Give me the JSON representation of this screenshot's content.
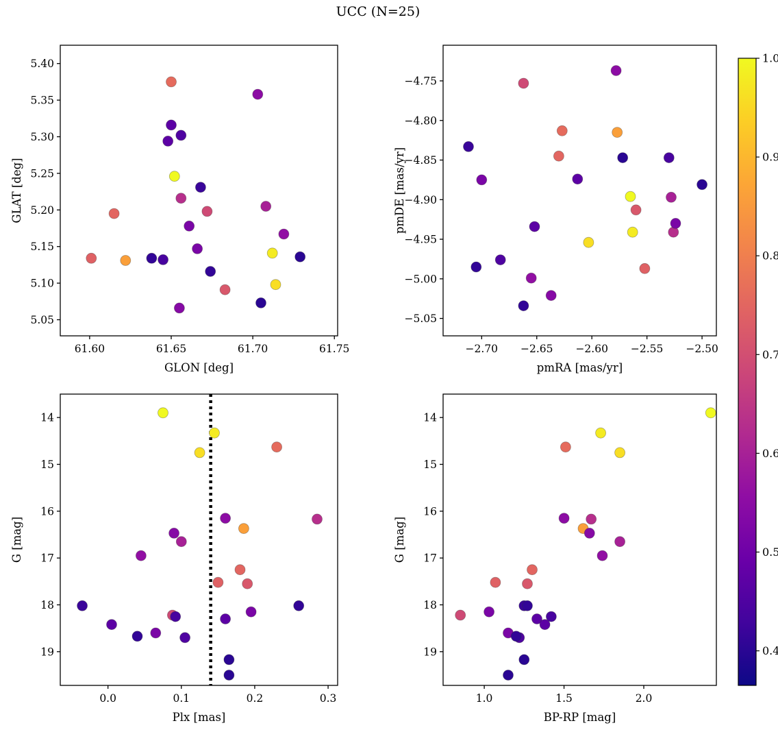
{
  "chart_data": {
    "type": "scatter",
    "figure_title": "UCC (N=25)",
    "legend": "none",
    "grid": false,
    "colorbar": {
      "colormap": "plasma",
      "vmin": 0.365,
      "vmax": 1.0,
      "ticks": [
        0.4,
        0.5,
        0.6,
        0.7,
        0.8,
        0.9,
        1.0
      ],
      "decimals": 1
    },
    "colors": {
      "plasma_stops": [
        "#0d0887",
        "#41049d",
        "#6a00a8",
        "#8f0da4",
        "#b12a90",
        "#cc4778",
        "#e16462",
        "#f2844b",
        "#fca636",
        "#fcce25",
        "#f0f921"
      ],
      "marker_edge": "#333333",
      "axis_color": "#000000",
      "vline_color": "#000000"
    },
    "marker": {
      "radius_px": 7.5
    },
    "panels": [
      {
        "name": "glon-glat",
        "xlabel": "GLON [deg]",
        "ylabel": "GLAT [deg]",
        "xkey": "glon",
        "ykey": "glat",
        "xlim": [
          61.582,
          61.752
        ],
        "ylim": [
          5.028,
          5.425
        ],
        "xticks": [
          61.6,
          61.65,
          61.7,
          61.75
        ],
        "yticks": [
          5.05,
          5.1,
          5.15,
          5.2,
          5.25,
          5.3,
          5.35,
          5.4
        ],
        "xdec": 2,
        "ydec": 2,
        "invert_y": false
      },
      {
        "name": "pmra-pmde",
        "xlabel": "pmRA [mas/yr]",
        "ylabel": "pmDE [mas/yr]",
        "xkey": "pmra",
        "ykey": "pmde",
        "xlim": [
          -2.735,
          -2.487
        ],
        "ylim": [
          -5.072,
          -4.705
        ],
        "xticks": [
          -2.7,
          -2.65,
          -2.6,
          -2.55,
          -2.5
        ],
        "yticks": [
          -5.05,
          -5.0,
          -4.95,
          -4.9,
          -4.85,
          -4.8,
          -4.75
        ],
        "xdec": 2,
        "ydec": 2,
        "invert_y": false
      },
      {
        "name": "plx-g",
        "xlabel": "Plx [mas]",
        "ylabel": "G [mag]",
        "xkey": "plx",
        "ykey": "g",
        "xlim": [
          -0.065,
          0.313
        ],
        "ylim": [
          13.5,
          19.72
        ],
        "xticks": [
          0.0,
          0.1,
          0.2,
          0.3
        ],
        "yticks": [
          14,
          15,
          16,
          17,
          18,
          19
        ],
        "xdec": 1,
        "ydec": 0,
        "invert_y": true,
        "vline": {
          "x": 0.14,
          "style": "dotted"
        }
      },
      {
        "name": "bprp-g",
        "xlabel": "BP-RP [mag]",
        "ylabel": "G [mag]",
        "xkey": "bprp",
        "ykey": "g",
        "xlim": [
          0.742,
          2.455
        ],
        "ylim": [
          13.5,
          19.72
        ],
        "xticks": [
          1.0,
          1.5,
          2.0
        ],
        "yticks": [
          14,
          15,
          16,
          17,
          18,
          19
        ],
        "xdec": 1,
        "ydec": 0,
        "invert_y": true
      }
    ],
    "stars": [
      {
        "glon": 61.652,
        "glat": 5.246,
        "pmra": -2.565,
        "pmde": -4.896,
        "plx": 0.075,
        "g": 13.9,
        "bprp": 2.42,
        "p": 1.0
      },
      {
        "glon": 61.712,
        "glat": 5.141,
        "pmra": -2.563,
        "pmde": -4.941,
        "plx": 0.145,
        "g": 14.33,
        "bprp": 1.73,
        "p": 0.98
      },
      {
        "glon": 61.714,
        "glat": 5.098,
        "pmra": -2.603,
        "pmde": -4.954,
        "plx": 0.125,
        "g": 14.75,
        "bprp": 1.85,
        "p": 0.96
      },
      {
        "glon": 61.65,
        "glat": 5.375,
        "pmra": -2.627,
        "pmde": -4.813,
        "plx": 0.23,
        "g": 14.63,
        "bprp": 1.51,
        "p": 0.76
      },
      {
        "glon": 61.622,
        "glat": 5.131,
        "pmra": -2.577,
        "pmde": -4.815,
        "plx": 0.185,
        "g": 16.37,
        "bprp": 1.62,
        "p": 0.86
      },
      {
        "glon": 61.615,
        "glat": 5.195,
        "pmra": -2.63,
        "pmde": -4.845,
        "plx": 0.18,
        "g": 17.25,
        "bprp": 1.3,
        "p": 0.75
      },
      {
        "glon": 61.601,
        "glat": 5.134,
        "pmra": -2.552,
        "pmde": -4.987,
        "plx": 0.15,
        "g": 17.52,
        "bprp": 1.07,
        "p": 0.74
      },
      {
        "glon": 61.683,
        "glat": 5.091,
        "pmra": -2.56,
        "pmde": -4.913,
        "plx": 0.19,
        "g": 17.55,
        "bprp": 1.27,
        "p": 0.72
      },
      {
        "glon": 61.672,
        "glat": 5.198,
        "pmra": -2.662,
        "pmde": -4.753,
        "plx": 0.088,
        "g": 18.22,
        "bprp": 0.85,
        "p": 0.69
      },
      {
        "glon": 61.656,
        "glat": 5.216,
        "pmra": -2.526,
        "pmde": -4.941,
        "plx": 0.285,
        "g": 16.17,
        "bprp": 1.67,
        "p": 0.63
      },
      {
        "glon": 61.703,
        "glat": 5.358,
        "pmra": -2.578,
        "pmde": -4.737,
        "plx": 0.16,
        "g": 16.15,
        "bprp": 1.5,
        "p": 0.55
      },
      {
        "glon": 61.708,
        "glat": 5.205,
        "pmra": -2.528,
        "pmde": -4.897,
        "plx": 0.1,
        "g": 16.65,
        "bprp": 1.85,
        "p": 0.6
      },
      {
        "glon": 61.719,
        "glat": 5.167,
        "pmra": -2.655,
        "pmde": -4.999,
        "plx": 0.045,
        "g": 16.95,
        "bprp": 1.74,
        "p": 0.56
      },
      {
        "glon": 61.655,
        "glat": 5.066,
        "pmra": -2.637,
        "pmde": -5.021,
        "plx": 0.09,
        "g": 16.47,
        "bprp": 1.66,
        "p": 0.54
      },
      {
        "glon": 61.661,
        "glat": 5.178,
        "pmra": -2.7,
        "pmde": -4.875,
        "plx": 0.065,
        "g": 18.6,
        "bprp": 1.15,
        "p": 0.52
      },
      {
        "glon": 61.666,
        "glat": 5.147,
        "pmra": -2.524,
        "pmde": -4.93,
        "plx": 0.195,
        "g": 18.15,
        "bprp": 1.03,
        "p": 0.52
      },
      {
        "glon": 61.65,
        "glat": 5.316,
        "pmra": -2.652,
        "pmde": -4.934,
        "plx": 0.16,
        "g": 18.3,
        "bprp": 1.33,
        "p": 0.47
      },
      {
        "glon": 61.648,
        "glat": 5.294,
        "pmra": -2.613,
        "pmde": -4.874,
        "plx": 0.005,
        "g": 18.42,
        "bprp": 1.38,
        "p": 0.47
      },
      {
        "glon": 61.656,
        "glat": 5.302,
        "pmra": -2.683,
        "pmde": -4.976,
        "plx": 0.105,
        "g": 18.7,
        "bprp": 1.22,
        "p": 0.45
      },
      {
        "glon": 61.668,
        "glat": 5.231,
        "pmra": -2.712,
        "pmde": -4.833,
        "plx": -0.035,
        "g": 18.02,
        "bprp": 1.25,
        "p": 0.42
      },
      {
        "glon": 61.638,
        "glat": 5.134,
        "pmra": -2.705,
        "pmde": -4.985,
        "plx": 0.26,
        "g": 18.02,
        "bprp": 1.27,
        "p": 0.41
      },
      {
        "glon": 61.674,
        "glat": 5.116,
        "pmra": -2.662,
        "pmde": -5.034,
        "plx": 0.04,
        "g": 18.67,
        "bprp": 1.2,
        "p": 0.41
      },
      {
        "glon": 61.705,
        "glat": 5.073,
        "pmra": -2.572,
        "pmde": -4.847,
        "plx": 0.165,
        "g": 19.17,
        "bprp": 1.25,
        "p": 0.4
      },
      {
        "glon": 61.729,
        "glat": 5.136,
        "pmra": -2.5,
        "pmde": -4.881,
        "plx": 0.165,
        "g": 19.5,
        "bprp": 1.15,
        "p": 0.4
      },
      {
        "glon": 61.645,
        "glat": 5.132,
        "pmra": -2.53,
        "pmde": -4.847,
        "plx": 0.092,
        "g": 18.25,
        "bprp": 1.42,
        "p": 0.44
      }
    ]
  }
}
